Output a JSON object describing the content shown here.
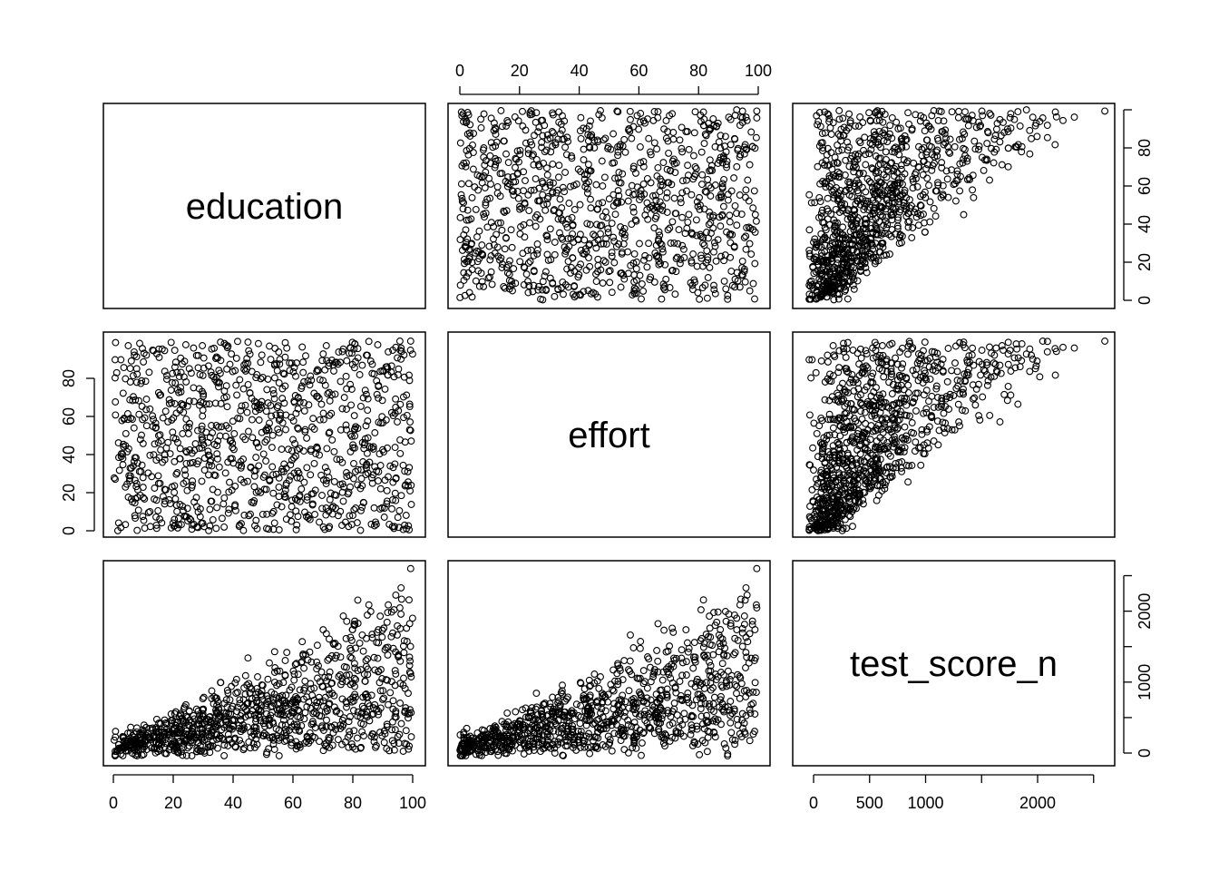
{
  "chart_data": {
    "type": "scatter",
    "subtype": "scatterplot-matrix",
    "variables": [
      "education",
      "effort",
      "test_score_n"
    ],
    "n_points": 1000,
    "ranges": {
      "education": [
        0,
        100
      ],
      "effort": [
        0,
        100
      ],
      "test_score_n": [
        -50,
        2600
      ]
    },
    "ticks": {
      "education": {
        "values": [
          0,
          20,
          40,
          60,
          80,
          100
        ],
        "labels": [
          "0",
          "20",
          "40",
          "60",
          "80",
          "100"
        ]
      },
      "effort": {
        "values": [
          0,
          20,
          40,
          60,
          80
        ],
        "labels": [
          "0",
          "20",
          "40",
          "60",
          "80"
        ]
      },
      "effort_top": {
        "values": [
          0,
          20,
          40,
          60,
          80,
          100
        ],
        "labels": [
          "0",
          "20",
          "40",
          "60",
          "80",
          "100"
        ]
      },
      "test_score_n_bottom": {
        "values": [
          0,
          500,
          1000,
          2000
        ],
        "labels": [
          "0",
          "500",
          "1000",
          "2000"
        ],
        "unlabeled": [
          1500,
          2500
        ]
      },
      "test_score_n_right": {
        "values": [
          0,
          1000,
          2000
        ],
        "labels": [
          "0",
          "1000",
          "2000"
        ],
        "unlabeled": [
          500,
          1500,
          2500
        ]
      }
    },
    "relationships": {
      "education_effort": "independent uniform 0-100, no correlation",
      "test_score_n_vs_education": "positive, fan-shaped; upper bound ~26 x education",
      "test_score_n_vs_effort": "positive, fan-shaped; upper bound ~26 x effort",
      "approx_model": "test_score_n ≈ 0.26 x education x effort (plus noise)"
    },
    "grid": false,
    "legend": "none",
    "point_marker": "open-circle"
  }
}
